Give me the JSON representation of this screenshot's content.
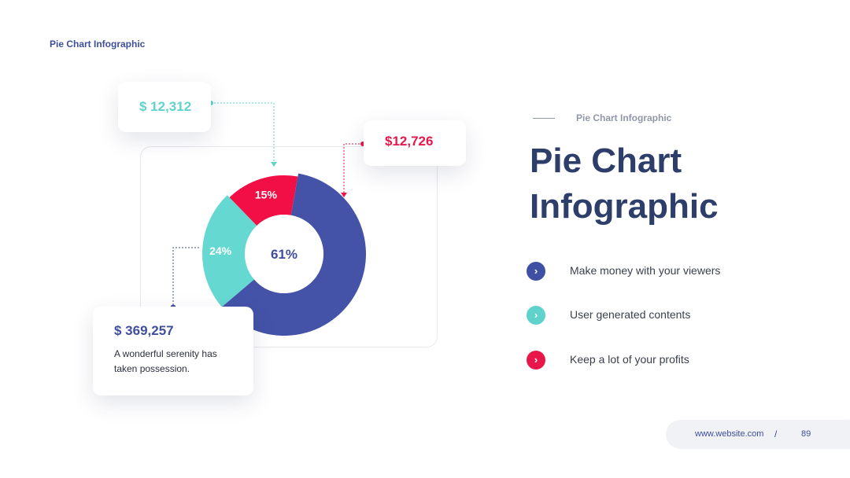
{
  "header": {
    "title": "Pie Chart Infographic"
  },
  "callouts": {
    "teal": {
      "amount": "$ 12,312"
    },
    "red": {
      "amount": "$12,726"
    },
    "blue": {
      "amount": "$ 369,257",
      "description": "A wonderful serenity has taken possession."
    }
  },
  "right": {
    "subtitle": "Pie Chart Infographic",
    "title_line1": "Pie Chart",
    "title_line2": "Infographic"
  },
  "list": {
    "items": [
      {
        "label": "Make money with your viewers",
        "color": "#3f4fa3",
        "icon": "chevron-right-icon"
      },
      {
        "label": "User generated contents",
        "color": "#5fd3cb",
        "icon": "chevron-right-icon"
      },
      {
        "label": "Keep a lot of your profits",
        "color": "#e8174a",
        "icon": "chevron-right-icon"
      }
    ]
  },
  "footer": {
    "url": "www.website.com",
    "separator": "/",
    "page": "89"
  },
  "chart_data": {
    "type": "pie",
    "categories": [
      "61%",
      "24%",
      "15%"
    ],
    "values": [
      61,
      24,
      15
    ],
    "colors": [
      "#4453a8",
      "#66d8d2",
      "#f20f45"
    ],
    "center_label": "61%"
  }
}
